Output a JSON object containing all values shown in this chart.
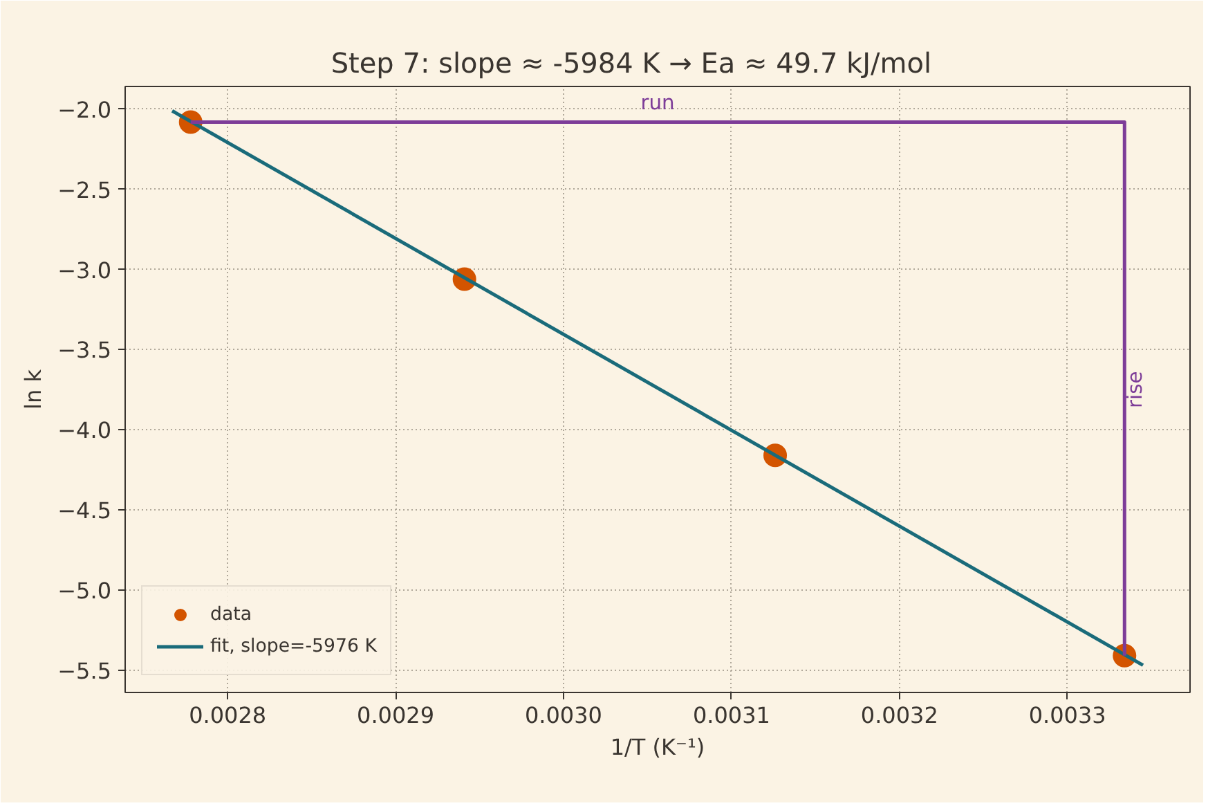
{
  "chart_data": {
    "type": "scatter",
    "title": "Step 7: slope  ≈  -5984 K  →  Ea  ≈  49.7 kJ/mol",
    "xlabel": "1/T (K⁻¹)",
    "ylabel": "ln k",
    "xlim": [
      0.002739,
      0.003373
    ],
    "xticks": [
      {
        "value": 0.0028,
        "label": "0.0028"
      },
      {
        "value": 0.0029,
        "label": "0.0029"
      },
      {
        "value": 0.003,
        "label": "0.0030"
      },
      {
        "value": 0.0031,
        "label": "0.0031"
      },
      {
        "value": 0.0032,
        "label": "0.0032"
      },
      {
        "value": 0.0033,
        "label": "0.0033"
      }
    ],
    "ylim": [
      -5.64,
      -1.858
    ],
    "yticks": [
      {
        "value": -2.0,
        "label": "−2.0"
      },
      {
        "value": -2.5,
        "label": "−2.5"
      },
      {
        "value": -3.0,
        "label": "−3.0"
      },
      {
        "value": -3.5,
        "label": "−3.5"
      },
      {
        "value": -4.0,
        "label": "−4.0"
      },
      {
        "value": -4.5,
        "label": "−4.5"
      },
      {
        "value": -5.0,
        "label": "−5.0"
      },
      {
        "value": -5.5,
        "label": "−5.5"
      }
    ],
    "series": [
      {
        "name": "data",
        "marker": "circle",
        "color": "#d35400",
        "x": [
          0.002778,
          0.002941,
          0.003126,
          0.003334
        ],
        "values": [
          -2.08,
          -3.06,
          -4.16,
          -5.41
        ]
      },
      {
        "name": "fit, slope=-5976 K",
        "type": "line",
        "color": "#1a6b7a",
        "x": [
          0.002767,
          0.003345
        ],
        "values": [
          -2.01,
          -5.47
        ]
      },
      {
        "type": "line",
        "color": "#7d3c98",
        "x": [
          0.002778,
          0.003334,
          0.003334
        ],
        "values": [
          -2.08,
          -2.08,
          -5.41
        ]
      }
    ],
    "annotations": [
      {
        "text": "run",
        "x": 0.003056,
        "y": -2.08
      },
      {
        "text": "rise",
        "x": 0.003334,
        "y": -3.75
      }
    ],
    "grid": true,
    "legend": "bottom left"
  }
}
